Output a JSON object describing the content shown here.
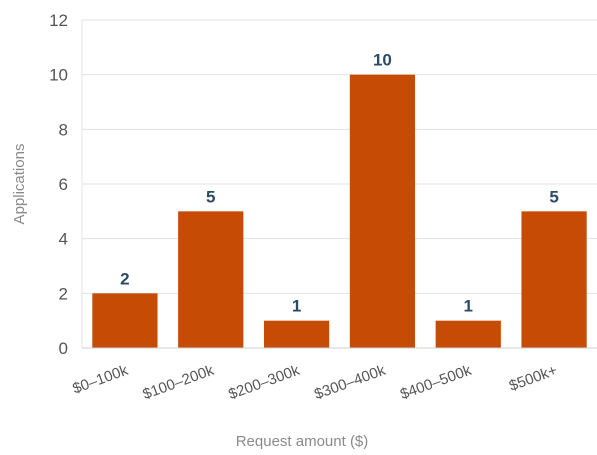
{
  "chart_data": {
    "type": "bar",
    "categories": [
      "$0–100k",
      "$100–200k",
      "$200–300k",
      "$300–400k",
      "$400–500k",
      "$500k+"
    ],
    "values": [
      2,
      5,
      1,
      10,
      1,
      5
    ],
    "xlabel": "Request amount ($)",
    "ylabel": "Applications",
    "ylim": [
      0,
      12
    ],
    "yticks": [
      0,
      2,
      4,
      6,
      8,
      10,
      12
    ],
    "grid": true,
    "data_labels": true,
    "bar_color": "#c64b04",
    "label_color": "#2d4a63"
  }
}
